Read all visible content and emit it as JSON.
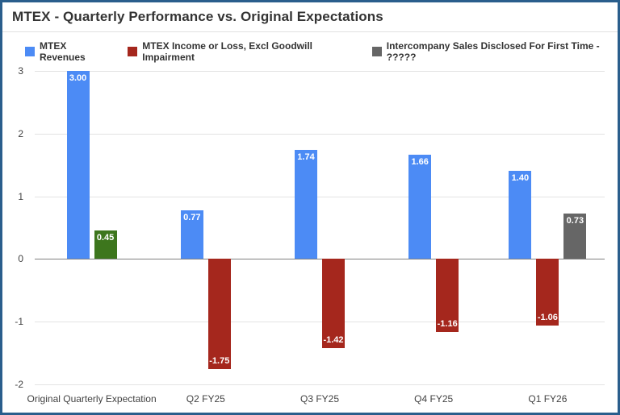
{
  "colors": {
    "border": "#2a5e8c",
    "grid": "#e3e3e3",
    "zero_line": "#808080",
    "title_text": "#333333",
    "axis_text": "#424242",
    "bar_label_text": "#ffffff"
  },
  "chart_data": {
    "type": "bar",
    "title": "MTEX - Quarterly Performance vs. Original Expectations",
    "categories": [
      "Original Quarterly Expectation",
      "Q2 FY25",
      "Q3 FY25",
      "Q4 FY25",
      "Q1 FY26"
    ],
    "series": [
      {
        "name": "MTEX Revenues",
        "color": "#4c8bf5",
        "values": [
          3.0,
          0.77,
          1.74,
          1.66,
          1.4
        ]
      },
      {
        "name": "MTEX Income or Loss, Excl Goodwill Impairment",
        "color": "#a5271d",
        "values": [
          0.45,
          -1.75,
          -1.42,
          -1.16,
          -1.06
        ],
        "point_colors": [
          "#3d761d",
          null,
          null,
          null,
          null
        ]
      },
      {
        "name": "Intercompany Sales Disclosed For First Time - ?????",
        "color": "#666666",
        "values": [
          null,
          null,
          null,
          null,
          0.73
        ]
      }
    ],
    "ylim": [
      -2,
      3
    ],
    "yticks": [
      3,
      2,
      1,
      0,
      -1,
      -2
    ],
    "grid": true,
    "legend_position": "top",
    "bar_labels": true,
    "label_format": "0.00",
    "xlabel": "",
    "ylabel": ""
  }
}
